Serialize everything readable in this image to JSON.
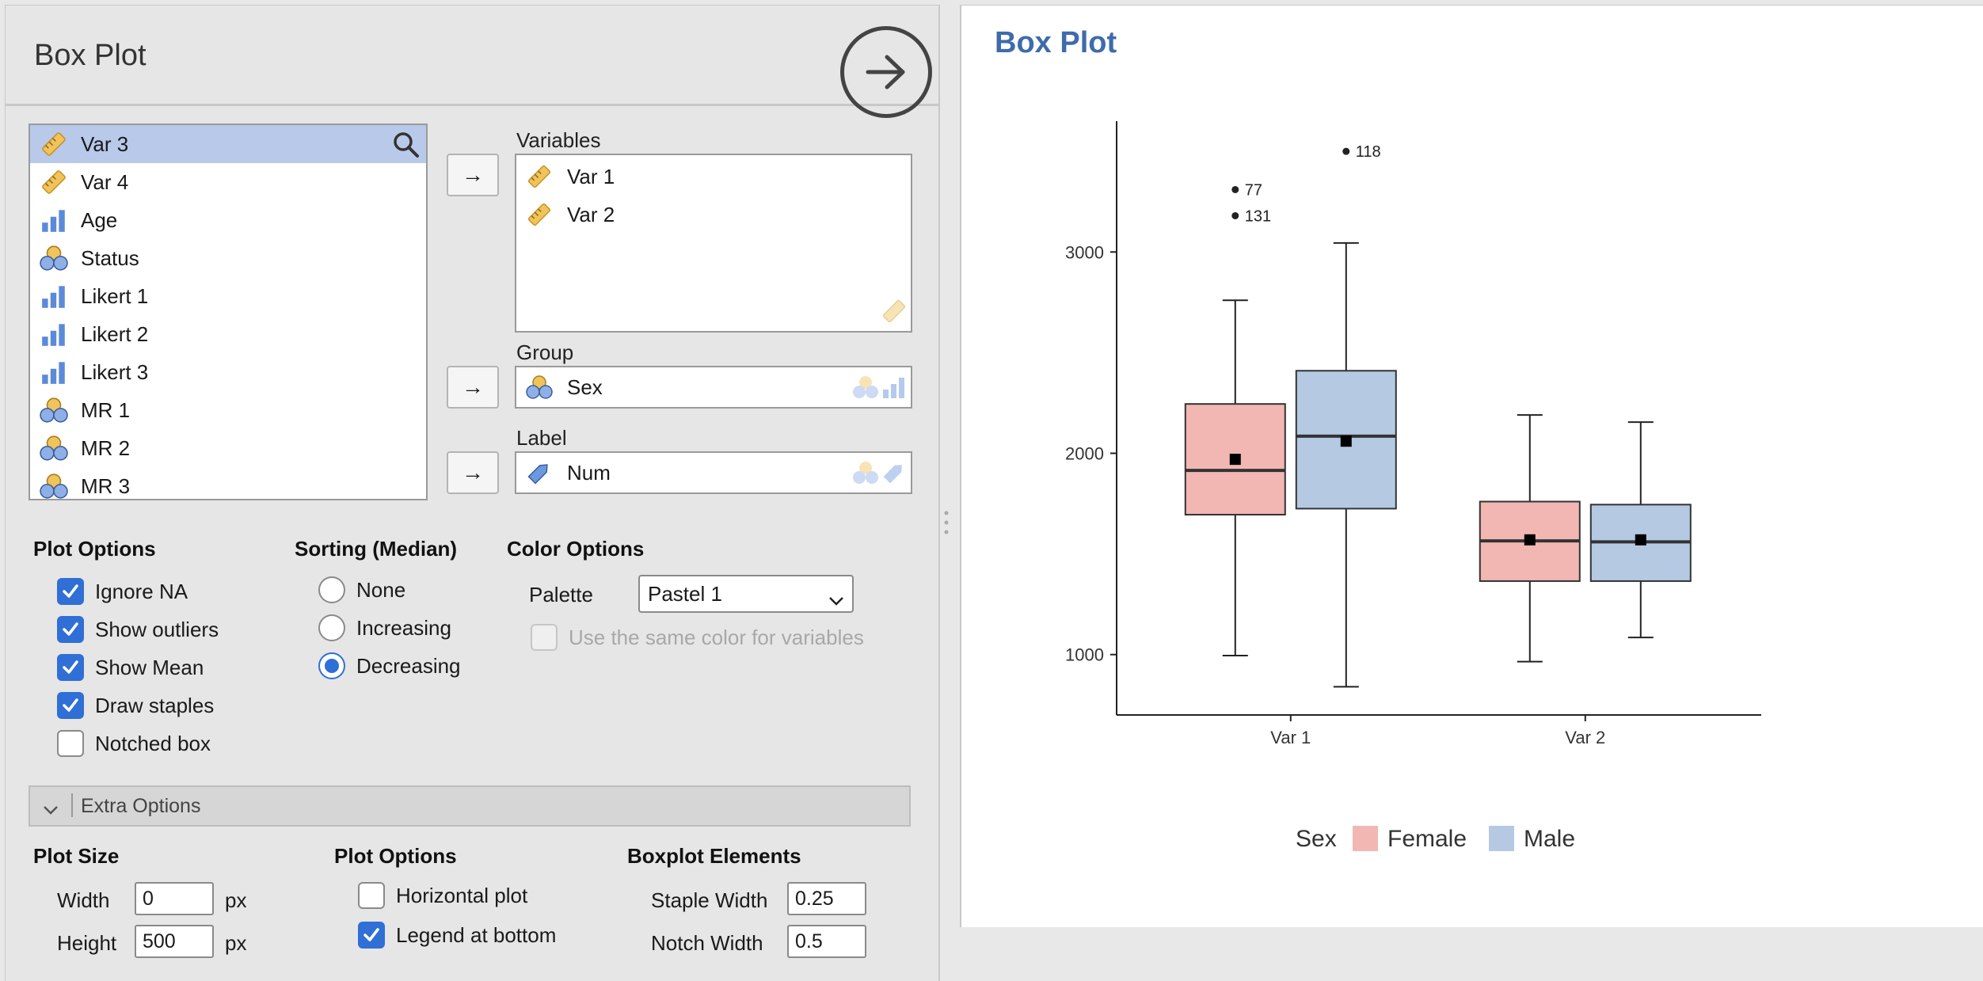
{
  "left_panel": {
    "title": "Box Plot",
    "variable_list": [
      {
        "label": "Var 3",
        "icon": "ruler-icon",
        "selected": true
      },
      {
        "label": "Var 4",
        "icon": "ruler-icon"
      },
      {
        "label": "Age",
        "icon": "bar-chart-icon"
      },
      {
        "label": "Status",
        "icon": "nominal-icon"
      },
      {
        "label": "Likert 1",
        "icon": "bar-chart-icon"
      },
      {
        "label": "Likert 2",
        "icon": "bar-chart-icon"
      },
      {
        "label": "Likert 3",
        "icon": "bar-chart-icon"
      },
      {
        "label": "MR 1",
        "icon": "nominal-icon"
      },
      {
        "label": "MR 2",
        "icon": "nominal-icon"
      },
      {
        "label": "MR 3",
        "icon": "nominal-icon"
      }
    ],
    "variables_box": {
      "label": "Variables",
      "items": [
        "Var 1",
        "Var 2"
      ]
    },
    "group_box": {
      "label": "Group",
      "value": "Sex"
    },
    "label_box": {
      "label": "Label",
      "value": "Num"
    },
    "plot_options": {
      "title": "Plot Options",
      "items": [
        {
          "label": "Ignore NA",
          "checked": true
        },
        {
          "label": "Show outliers",
          "checked": true
        },
        {
          "label": "Show Mean",
          "checked": true
        },
        {
          "label": "Draw staples",
          "checked": true
        },
        {
          "label": "Notched box",
          "checked": false
        }
      ]
    },
    "sorting": {
      "title": "Sorting (Median)",
      "options": [
        "None",
        "Increasing",
        "Decreasing"
      ],
      "selected": "Decreasing"
    },
    "color_options": {
      "title": "Color Options",
      "palette_label": "Palette",
      "palette_value": "Pastel 1",
      "same_color_label": "Use the same color for variables"
    },
    "extra_options": {
      "label": "Extra Options",
      "plot_size": {
        "title": "Plot Size",
        "width_label": "Width",
        "width_value": "0",
        "height_label": "Height",
        "height_value": "500",
        "unit": "px"
      },
      "plot_options": {
        "title": "Plot Options",
        "horizontal_label": "Horizontal plot",
        "horizontal_checked": false,
        "legend_label": "Legend at bottom",
        "legend_checked": true
      },
      "boxplot_elements": {
        "title": "Boxplot Elements",
        "staple_label": "Staple Width",
        "staple_value": "0.25",
        "notch_label": "Notch Width",
        "notch_value": "0.5"
      }
    }
  },
  "right_panel": {
    "title": "Box Plot"
  },
  "colors": {
    "female": "#f2b7b3",
    "male": "#b5c9e3",
    "accent": "#2f6fd6",
    "title_blue": "#3f6bab"
  },
  "chart_data": {
    "type": "box",
    "categories": [
      "Var 1",
      "Var 2"
    ],
    "yticks": [
      1000,
      2000,
      3000
    ],
    "ylim": [
      700,
      3650
    ],
    "legend": {
      "title": "Sex",
      "position": "bottom",
      "entries": [
        "Female",
        "Male"
      ]
    },
    "series": [
      {
        "name": "Female",
        "boxes": [
          {
            "min": 995,
            "q1": 1695,
            "median": 1915,
            "q3": 2245,
            "max": 2760,
            "mean": 1970,
            "outliers": [
              {
                "value": 3310,
                "label": "77"
              },
              {
                "value": 3180,
                "label": "131"
              }
            ]
          },
          {
            "min": 965,
            "q1": 1365,
            "median": 1565,
            "q3": 1760,
            "max": 2190,
            "mean": 1570,
            "outliers": []
          }
        ]
      },
      {
        "name": "Male",
        "boxes": [
          {
            "min": 840,
            "q1": 1725,
            "median": 2085,
            "q3": 2410,
            "max": 3045,
            "mean": 2060,
            "outliers": [
              {
                "value": 3500,
                "label": "118"
              }
            ]
          },
          {
            "min": 1085,
            "q1": 1365,
            "median": 1560,
            "q3": 1745,
            "max": 2155,
            "mean": 1570,
            "outliers": []
          }
        ]
      }
    ]
  }
}
